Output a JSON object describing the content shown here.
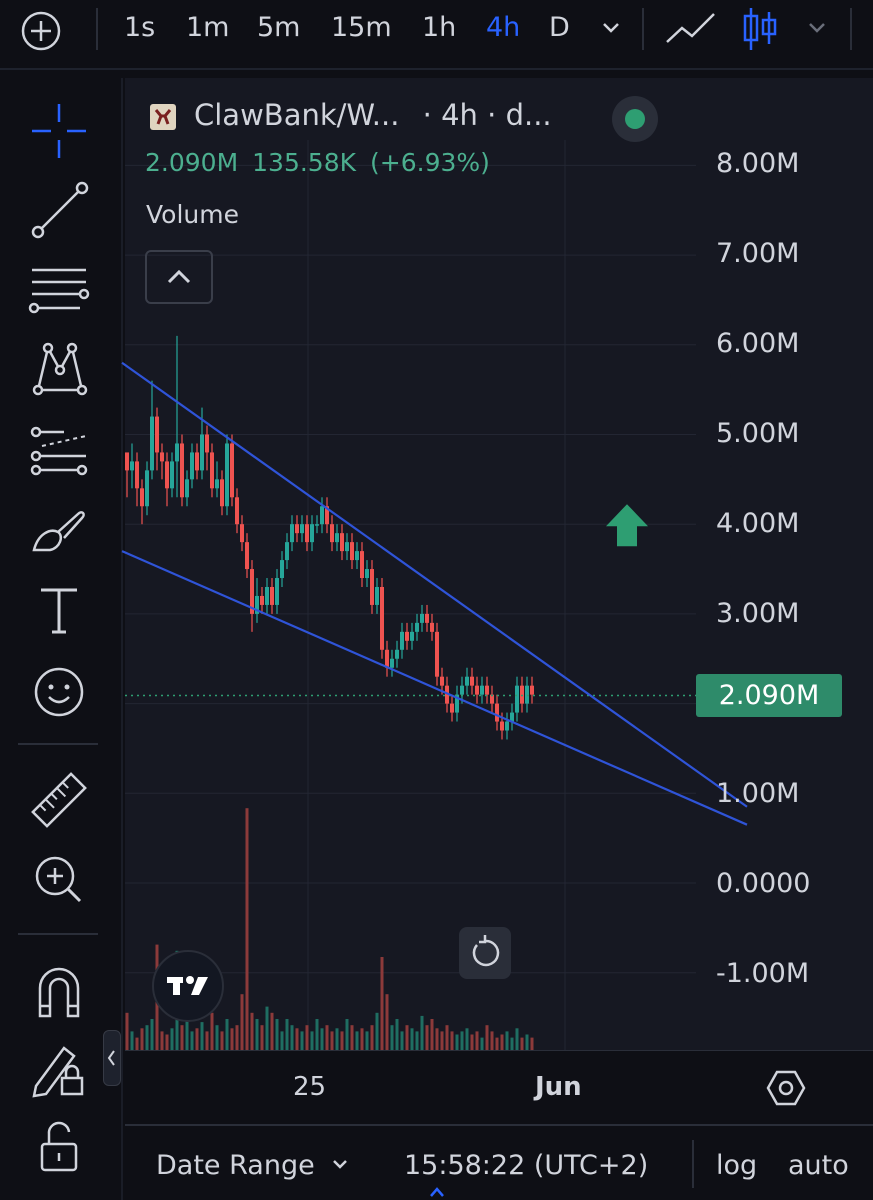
{
  "toolbar": {
    "timeframes": [
      "1s",
      "1m",
      "5m",
      "15m",
      "1h",
      "4h",
      "D"
    ],
    "active_timeframe": "4h",
    "icons": [
      "add-symbol-icon",
      "chevron-down-icon",
      "line-chart-icon",
      "candle-chart-icon",
      "chevron-down-icon"
    ]
  },
  "sidebar": {
    "tools": [
      "crosshair-icon",
      "trend-line-icon",
      "fib-retracement-icon",
      "pattern-icon",
      "prediction-icon",
      "brush-icon",
      "text-icon",
      "emoji-icon",
      "ruler-icon",
      "zoom-in-icon",
      "magnet-icon",
      "lock-drawings-icon",
      "unlock-icon"
    ]
  },
  "legend": {
    "title": "ClawBank/W...",
    "interval": "· 4h · d...",
    "price": "2.090M",
    "change": "135.58K",
    "change_pct": "(+6.93%)",
    "volume_label": "Volume"
  },
  "price_axis": {
    "labels": [
      "8.00M",
      "7.00M",
      "6.00M",
      "5.00M",
      "4.00M",
      "3.00M",
      "1.00M",
      "0.0000",
      "-1.00M"
    ],
    "current_price": "2.090M"
  },
  "time_axis": {
    "labels": [
      "25",
      "Jun"
    ]
  },
  "bottom_bar": {
    "date_range": "Date Range",
    "clock": "15:58:22 (UTC+2)",
    "log": "log",
    "auto": "auto"
  },
  "colors": {
    "up": "#26a69a",
    "down": "#ef5350",
    "trendline": "#2f54d8",
    "price_tag": "#2e8b6a",
    "active": "#2962ff",
    "arrow": "#2e9e72"
  },
  "chart_data": {
    "type": "candlestick",
    "y_axis_range": [
      -1.5,
      8.6
    ],
    "y_unit": "M",
    "last_price": 2.09,
    "candles": [
      [
        4.8,
        4.6,
        4.3,
        4.7
      ],
      [
        4.6,
        4.7,
        4.4,
        4.9
      ],
      [
        4.7,
        4.4,
        4.2,
        4.8
      ],
      [
        4.4,
        4.2,
        4.0,
        4.5
      ],
      [
        4.2,
        4.6,
        4.1,
        4.7
      ],
      [
        4.6,
        5.2,
        4.5,
        5.6
      ],
      [
        5.2,
        4.8,
        4.6,
        5.3
      ],
      [
        4.8,
        4.7,
        4.5,
        4.9
      ],
      [
        4.7,
        4.4,
        4.2,
        4.8
      ],
      [
        4.4,
        4.7,
        4.3,
        4.8
      ],
      [
        4.7,
        4.9,
        4.3,
        6.1
      ],
      [
        4.9,
        4.3,
        4.2,
        5.0
      ],
      [
        4.3,
        4.5,
        4.2,
        4.6
      ],
      [
        4.5,
        4.8,
        4.4,
        4.9
      ],
      [
        4.8,
        4.6,
        4.5,
        4.9
      ],
      [
        4.6,
        5.0,
        4.5,
        5.3
      ],
      [
        5.0,
        4.8,
        4.6,
        5.1
      ],
      [
        4.8,
        4.4,
        4.3,
        4.9
      ],
      [
        4.4,
        4.5,
        4.3,
        4.7
      ],
      [
        4.5,
        4.2,
        4.1,
        4.6
      ],
      [
        4.2,
        4.9,
        4.1,
        5.0
      ],
      [
        4.9,
        4.3,
        4.2,
        5.0
      ],
      [
        4.3,
        4.0,
        3.9,
        4.4
      ],
      [
        4.0,
        3.8,
        3.7,
        4.1
      ],
      [
        3.8,
        3.5,
        3.4,
        3.9
      ],
      [
        3.5,
        3.0,
        2.8,
        3.6
      ],
      [
        3.0,
        3.2,
        2.9,
        3.4
      ],
      [
        3.2,
        3.1,
        3.0,
        3.3
      ],
      [
        3.1,
        3.3,
        3.0,
        3.4
      ],
      [
        3.3,
        3.1,
        3.0,
        3.4
      ],
      [
        3.1,
        3.4,
        3.0,
        3.5
      ],
      [
        3.4,
        3.6,
        3.3,
        3.7
      ],
      [
        3.6,
        3.8,
        3.5,
        3.9
      ],
      [
        3.8,
        4.0,
        3.7,
        4.1
      ],
      [
        4.0,
        3.9,
        3.8,
        4.1
      ],
      [
        3.9,
        4.0,
        3.8,
        4.1
      ],
      [
        4.0,
        3.8,
        3.7,
        4.1
      ],
      [
        3.8,
        4.0,
        3.7,
        4.1
      ],
      [
        4.0,
        4.0,
        3.9,
        4.1
      ],
      [
        4.0,
        4.2,
        3.9,
        4.3
      ],
      [
        4.2,
        4.0,
        3.9,
        4.3
      ],
      [
        4.0,
        3.8,
        3.7,
        4.1
      ],
      [
        3.8,
        3.9,
        3.7,
        4.0
      ],
      [
        3.9,
        3.7,
        3.6,
        4.0
      ],
      [
        3.7,
        3.8,
        3.6,
        3.9
      ],
      [
        3.8,
        3.6,
        3.5,
        3.9
      ],
      [
        3.6,
        3.7,
        3.5,
        3.8
      ],
      [
        3.7,
        3.4,
        3.3,
        3.8
      ],
      [
        3.4,
        3.5,
        3.3,
        3.6
      ],
      [
        3.5,
        3.1,
        3.0,
        3.6
      ],
      [
        3.1,
        3.3,
        3.0,
        3.4
      ],
      [
        3.3,
        2.6,
        2.5,
        3.4
      ],
      [
        2.6,
        2.4,
        2.3,
        2.7
      ],
      [
        2.4,
        2.5,
        2.3,
        2.6
      ],
      [
        2.5,
        2.6,
        2.4,
        2.7
      ],
      [
        2.6,
        2.8,
        2.5,
        2.9
      ],
      [
        2.8,
        2.7,
        2.6,
        2.9
      ],
      [
        2.7,
        2.8,
        2.6,
        2.9
      ],
      [
        2.8,
        2.9,
        2.7,
        3.0
      ],
      [
        2.9,
        3.0,
        2.8,
        3.1
      ],
      [
        3.0,
        2.9,
        2.8,
        3.1
      ],
      [
        2.9,
        2.8,
        2.7,
        3.0
      ],
      [
        2.8,
        2.3,
        2.2,
        2.9
      ],
      [
        2.3,
        2.2,
        2.1,
        2.4
      ],
      [
        2.2,
        2.0,
        1.9,
        2.3
      ],
      [
        2.0,
        1.9,
        1.8,
        2.1
      ],
      [
        1.9,
        2.1,
        1.8,
        2.2
      ],
      [
        2.1,
        2.2,
        2.0,
        2.3
      ],
      [
        2.2,
        2.3,
        2.1,
        2.4
      ],
      [
        2.3,
        2.2,
        2.1,
        2.4
      ],
      [
        2.2,
        2.1,
        2.0,
        2.3
      ],
      [
        2.1,
        2.2,
        2.0,
        2.3
      ],
      [
        2.2,
        2.1,
        2.0,
        2.3
      ],
      [
        2.1,
        2.0,
        1.9,
        2.2
      ],
      [
        2.0,
        1.8,
        1.7,
        2.1
      ],
      [
        1.8,
        1.7,
        1.6,
        1.9
      ],
      [
        1.7,
        1.8,
        1.6,
        1.9
      ],
      [
        1.8,
        1.9,
        1.7,
        2.0
      ],
      [
        1.9,
        2.2,
        1.8,
        2.3
      ],
      [
        2.2,
        2.0,
        1.9,
        2.3
      ],
      [
        2.0,
        2.2,
        1.9,
        2.3
      ],
      [
        2.2,
        2.1,
        2.0,
        2.3
      ]
    ],
    "volumes": [
      0.6,
      0.3,
      0.2,
      0.35,
      0.4,
      0.5,
      1.7,
      0.3,
      0.25,
      0.35,
      1.6,
      0.4,
      0.5,
      0.3,
      0.35,
      0.45,
      0.3,
      0.6,
      0.4,
      0.3,
      0.5,
      0.35,
      0.4,
      0.9,
      3.9,
      0.6,
      0.5,
      0.4,
      0.7,
      0.6,
      0.5,
      0.3,
      0.5,
      0.4,
      0.35,
      0.3,
      0.4,
      0.3,
      0.5,
      0.35,
      0.4,
      0.3,
      0.35,
      0.3,
      0.5,
      0.4,
      0.3,
      0.35,
      0.3,
      0.4,
      0.6,
      1.5,
      0.9,
      0.4,
      0.5,
      0.3,
      0.4,
      0.35,
      0.3,
      0.55,
      0.4,
      0.5,
      0.35,
      0.3,
      0.4,
      0.3,
      0.25,
      0.3,
      0.35,
      0.25,
      0.3,
      0.2,
      0.4,
      0.3,
      0.2,
      0.25,
      0.3,
      0.2,
      0.35,
      0.2,
      0.25,
      0.2
    ],
    "trendlines": [
      {
        "name": "upper",
        "start_bar": -1,
        "start_price": 5.8,
        "end_bar": 124,
        "end_price": 0.85
      },
      {
        "name": "lower",
        "start_bar": -1,
        "start_price": 3.7,
        "end_bar": 124,
        "end_price": 0.65
      }
    ],
    "annotation": {
      "type": "arrow-up",
      "bar": 100,
      "price": 4.0
    }
  }
}
